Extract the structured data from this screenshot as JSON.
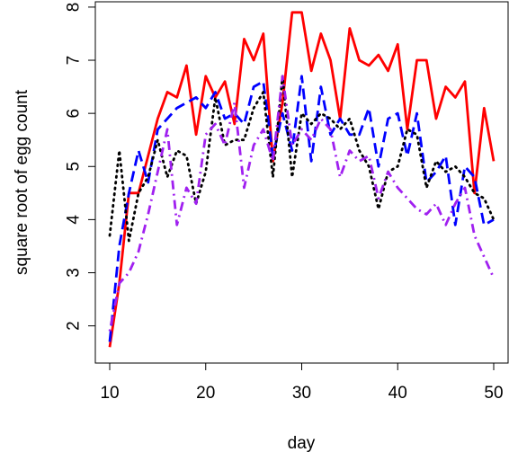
{
  "chart_data": {
    "type": "line",
    "xlabel": "day",
    "ylabel": "square root of egg count",
    "xlim": [
      8.5,
      51.5
    ],
    "ylim": [
      1.3,
      8.1
    ],
    "xticks": [
      10,
      20,
      30,
      40,
      50
    ],
    "yticks": [
      2,
      3,
      4,
      5,
      6,
      7,
      8
    ],
    "grid": false,
    "legend": "none",
    "x": [
      10,
      11,
      12,
      13,
      14,
      15,
      16,
      17,
      18,
      19,
      20,
      21,
      22,
      23,
      24,
      25,
      26,
      27,
      28,
      29,
      30,
      31,
      32,
      33,
      34,
      35,
      36,
      37,
      38,
      39,
      40,
      41,
      42,
      43,
      44,
      45,
      46,
      47,
      48,
      49,
      50
    ],
    "series": [
      {
        "color": "#ff0000",
        "dash": "solid",
        "values": [
          1.6,
          2.8,
          4.5,
          4.5,
          5.2,
          5.9,
          6.4,
          6.3,
          6.9,
          5.6,
          6.7,
          6.3,
          6.6,
          5.8,
          7.4,
          7.0,
          7.5,
          5.1,
          6.2,
          7.9,
          7.9,
          6.8,
          7.5,
          7.0,
          5.9,
          7.6,
          7.0,
          6.9,
          7.1,
          6.8,
          7.3,
          5.7,
          7.0,
          7.0,
          5.9,
          6.5,
          6.3,
          6.6,
          4.5,
          6.1,
          5.1
        ]
      },
      {
        "color": "#0000ff",
        "dash": "dashed",
        "values": [
          1.7,
          3.5,
          4.5,
          5.3,
          4.7,
          5.7,
          5.9,
          6.1,
          6.2,
          6.3,
          6.1,
          6.4,
          5.9,
          6.0,
          5.8,
          6.5,
          6.6,
          5.2,
          6.0,
          5.3,
          6.7,
          5.1,
          6.5,
          5.6,
          5.9,
          5.6,
          5.6,
          6.1,
          5.0,
          5.9,
          6.0,
          5.2,
          6.0,
          4.7,
          4.9,
          5.2,
          3.9,
          5.0,
          4.8,
          3.9,
          4.0
        ]
      },
      {
        "color": "#000000",
        "dash": "dotted",
        "values": [
          3.7,
          5.3,
          3.6,
          4.5,
          4.8,
          5.5,
          4.8,
          5.3,
          5.2,
          4.3,
          4.9,
          6.3,
          5.4,
          5.5,
          5.5,
          6.1,
          6.4,
          4.8,
          6.7,
          4.8,
          6.0,
          5.8,
          6.0,
          5.9,
          5.7,
          5.9,
          5.3,
          5.0,
          4.2,
          4.9,
          5.0,
          5.7,
          5.6,
          4.6,
          5.1,
          4.9,
          5.0,
          4.8,
          4.5,
          4.4,
          4.0
        ]
      },
      {
        "color": "#a020f0",
        "dash": "dotdash",
        "values": [
          1.9,
          2.8,
          3.0,
          3.4,
          4.1,
          4.9,
          5.7,
          3.9,
          4.6,
          4.3,
          5.6,
          5.8,
          5.4,
          6.2,
          4.6,
          5.4,
          5.7,
          5.1,
          6.7,
          5.4,
          5.7,
          5.5,
          5.9,
          5.7,
          4.8,
          5.3,
          5.1,
          5.2,
          4.4,
          4.9,
          4.6,
          4.4,
          4.2,
          4.1,
          4.3,
          3.9,
          4.3,
          4.6,
          3.7,
          3.3,
          2.9
        ]
      }
    ]
  }
}
